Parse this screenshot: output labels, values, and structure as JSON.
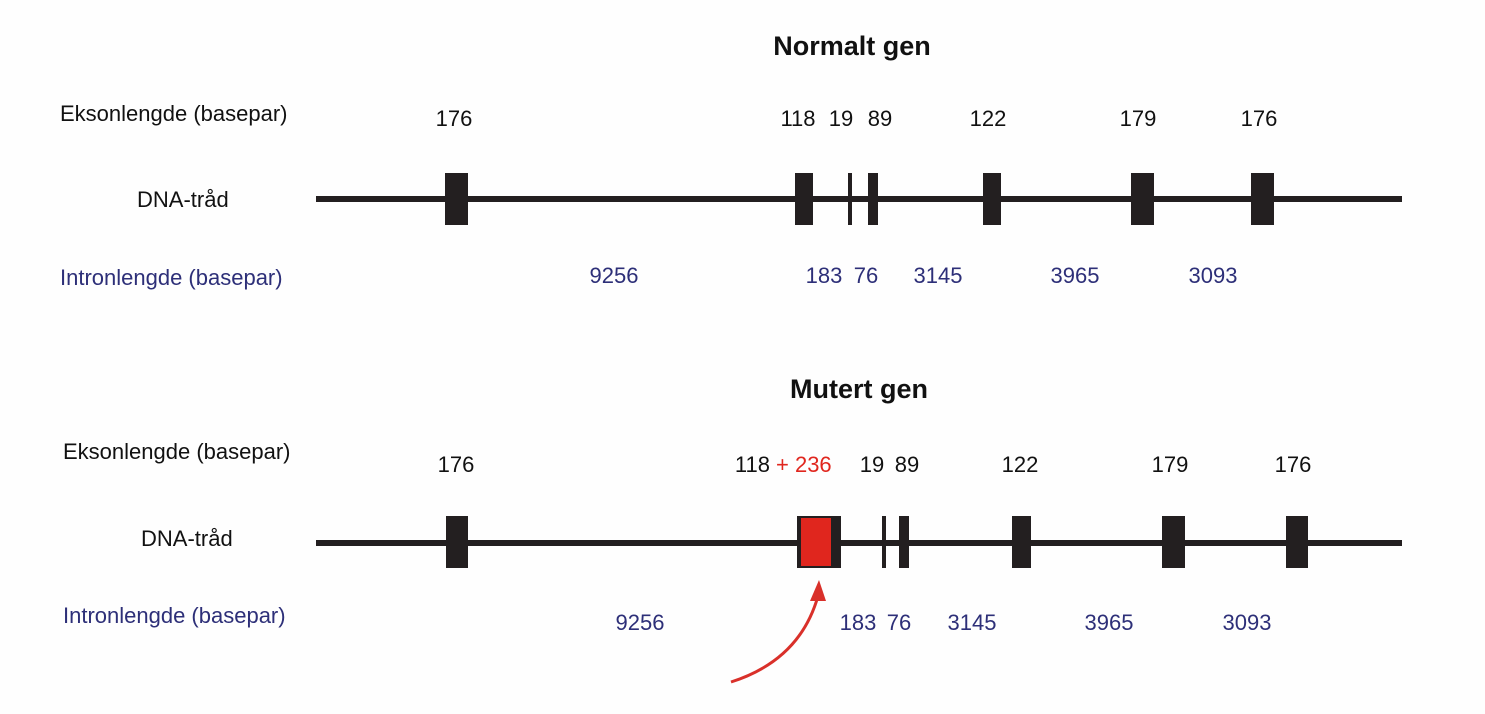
{
  "colors": {
    "strand": "#231f20",
    "exon": "#231f20",
    "intron_text": "#2d2f78",
    "insertion": "#e0261e",
    "arrow": "#d9302a"
  },
  "normal": {
    "title": "Normalt gen",
    "exon_label": "Eksonlengde (basepar)",
    "strand_label": "DNA-tråd",
    "intron_label": "Intronlengde (basepar)",
    "exon_lengths": [
      "176",
      "118",
      "19",
      "89",
      "122",
      "179",
      "176"
    ],
    "intron_lengths": [
      "9256",
      "183",
      "76",
      "3145",
      "3965",
      "3093"
    ]
  },
  "mutant": {
    "title": "Mutert gen",
    "exon_label": "Eksonlengde (basepar)",
    "strand_label": "DNA-tråd",
    "intron_label": "Intronlengde (basepar)",
    "exon_lengths": [
      "176",
      "118",
      "19",
      "89",
      "122",
      "179",
      "176"
    ],
    "insertion_text": "+ 236",
    "intron_lengths": [
      "9256",
      "183",
      "76",
      "3145",
      "3965",
      "3093"
    ]
  }
}
